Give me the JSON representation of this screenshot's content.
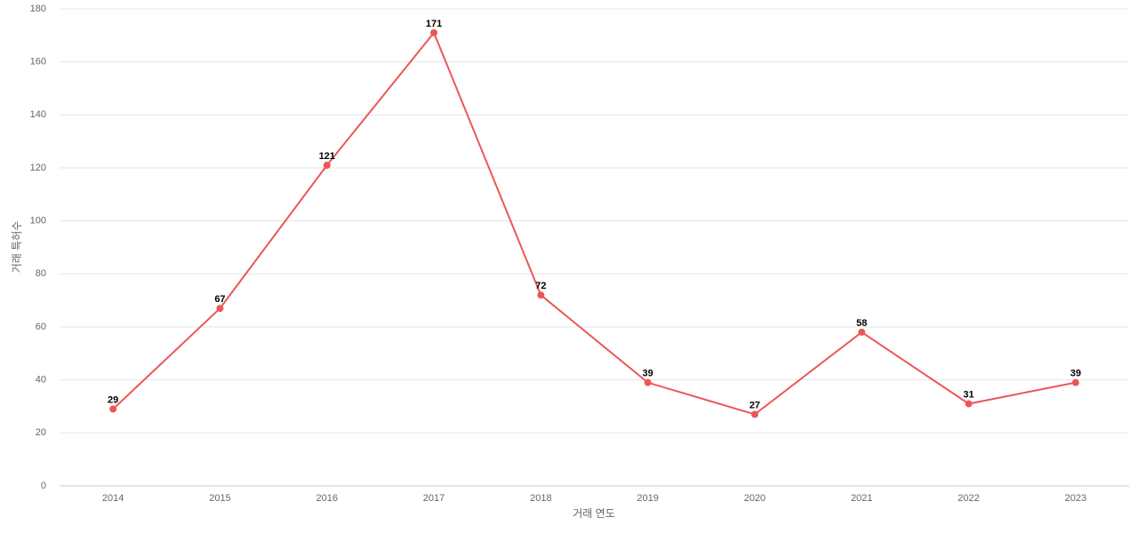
{
  "chart_data": {
    "type": "line",
    "x_label": "거래 연도",
    "y_label": "거래 특허수",
    "categories": [
      "2014",
      "2015",
      "2016",
      "2017",
      "2018",
      "2019",
      "2020",
      "2021",
      "2022",
      "2023"
    ],
    "series": [
      {
        "name": "거래 특허수",
        "color": "#eb5757",
        "values": [
          29,
          67,
          121,
          171,
          72,
          39,
          27,
          58,
          31,
          39
        ]
      }
    ],
    "ylim": [
      0,
      180
    ],
    "yticks": [
      0,
      20,
      40,
      60,
      80,
      100,
      120,
      140,
      160,
      180
    ],
    "grid": true
  }
}
